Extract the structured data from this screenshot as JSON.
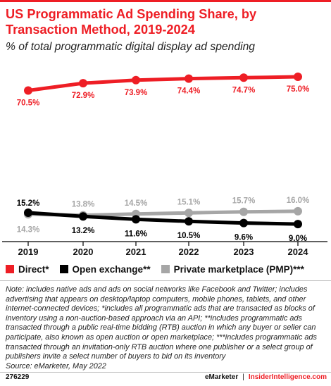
{
  "title": "US Programmatic Ad Spending Share, by Transaction Method, 2019-2024",
  "subtitle": "% of total programmatic digital display ad spending",
  "chart_data": {
    "type": "line",
    "x": [
      "2019",
      "2020",
      "2021",
      "2022",
      "2023",
      "2024"
    ],
    "series": [
      {
        "name": "Direct*",
        "color": "#ee1e25",
        "values": [
          70.5,
          72.9,
          73.9,
          74.4,
          74.7,
          75.0
        ],
        "labels": [
          "70.5%",
          "72.9%",
          "73.9%",
          "74.4%",
          "74.7%",
          "75.0%"
        ]
      },
      {
        "name": "Open exchange**",
        "color": "#000000",
        "values": [
          15.2,
          13.2,
          11.6,
          10.5,
          9.6,
          9.0
        ],
        "labels": [
          "15.2%",
          "13.2%",
          "11.6%",
          "10.5%",
          "9.6%",
          "9.0%"
        ]
      },
      {
        "name": "Private marketplace (PMP)***",
        "color": "#a6a6a6",
        "values": [
          14.3,
          13.8,
          14.5,
          15.1,
          15.7,
          16.0
        ],
        "labels": [
          "14.3%",
          "13.8%",
          "14.5%",
          "15.1%",
          "15.7%",
          "16.0%"
        ]
      }
    ],
    "grid": false,
    "legend_position": "bottom-left"
  },
  "legend": [
    {
      "label": "Direct*",
      "color": "#ee1e25"
    },
    {
      "label": "Open exchange**",
      "color": "#000000"
    },
    {
      "label": "Private marketplace (PMP)***",
      "color": "#a6a6a6"
    }
  ],
  "note_lines": [
    "Note: includes native ads and ads on social networks like Facebook and Twitter; includes",
    "advertising that appears on desktop/laptop computers, mobile phones, tablets, and other",
    "internet-connected devices; *includes all programmatic ads that are transacted as blocks of",
    "inventory using a non-auction-based approach via an API; **includes programmatic ads",
    "transacted through a public real-time bidding (RTB) auction in which any buyer or seller can",
    "participate, also known as open auction or open marketplace; ***includes programmatic ads",
    "transacted through an invitation-only RTB auction where one publisher or a select group of",
    "publishers invite a select number of buyers to bid on its inventory",
    "Source: eMarketer, May 2022"
  ],
  "footer": {
    "id": "276229",
    "brand": "eMarketer",
    "separator": "|",
    "site": "InsiderIntelligence.com"
  }
}
